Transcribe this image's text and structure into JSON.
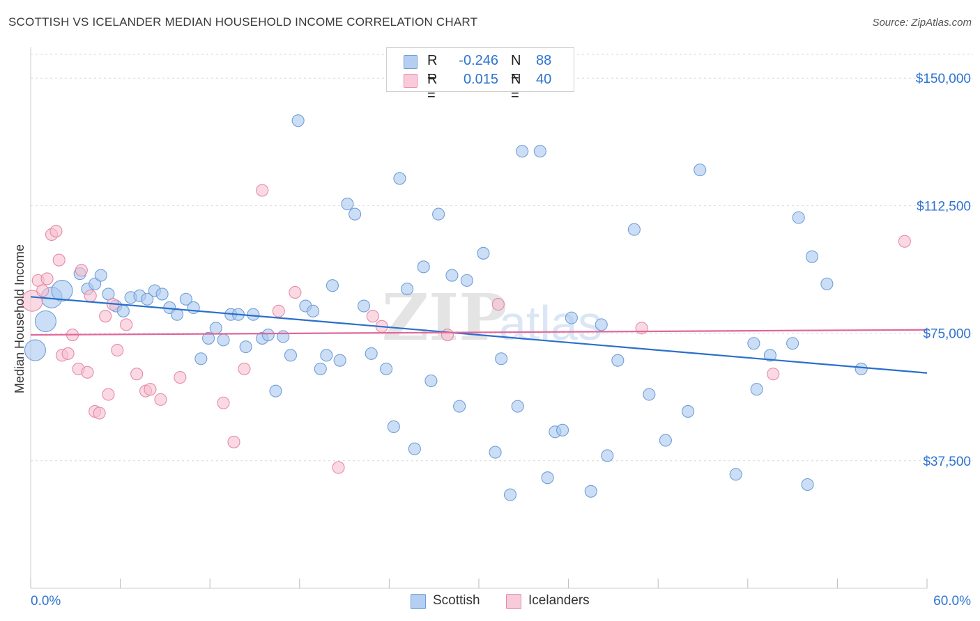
{
  "header": {
    "title": "SCOTTISH VS ICELANDER MEDIAN HOUSEHOLD INCOME CORRELATION CHART",
    "source": "Source: ZipAtlas.com"
  },
  "legend": {
    "rows": [
      {
        "r_label": "R =",
        "r_value": "-0.246",
        "n_label": "N =",
        "n_value": "88"
      },
      {
        "r_label": "R =",
        "r_value": "0.015",
        "n_label": "N =",
        "n_value": "40"
      }
    ]
  },
  "bottom_legend": {
    "scottish": "Scottish",
    "icelanders": "Icelanders"
  },
  "watermark": {
    "zip": "ZIP",
    "atlas": "atlas"
  },
  "colors": {
    "scottish_fill": "#a9c8ee",
    "scottish_stroke": "#6f9fd8",
    "scottish_line": "#2a6fcc",
    "icelanders_fill": "#f6bfd0",
    "icelanders_stroke": "#e58aa8",
    "icelanders_line": "#e0689a",
    "axis_text": "#2e74d0",
    "grid": "#d8d8d8"
  },
  "chart_data": {
    "type": "scatter",
    "title": "SCOTTISH VS ICELANDER MEDIAN HOUSEHOLD INCOME CORRELATION CHART",
    "xlabel": "",
    "ylabel": "Median Household Income",
    "xlim": [
      0,
      60
    ],
    "ylim": [
      0,
      157000
    ],
    "x_tick_labels": [
      "0.0%",
      "60.0%"
    ],
    "y_ticks": [
      37500,
      75000,
      112500,
      150000
    ],
    "y_tick_labels": [
      "$37,500",
      "$75,000",
      "$112,500",
      "$150,000"
    ],
    "grid": true,
    "legend_position": "top-center",
    "series": [
      {
        "name": "Scottish",
        "R": -0.246,
        "N": 88,
        "trend": {
          "x": [
            0,
            60
          ],
          "y": [
            85700,
            63300
          ]
        },
        "points": [
          {
            "x": 0.3,
            "y": 70000,
            "big": true
          },
          {
            "x": 1.0,
            "y": 78500,
            "big": true
          },
          {
            "x": 1.4,
            "y": 85500,
            "big": true
          },
          {
            "x": 2.1,
            "y": 87500,
            "big": true
          },
          {
            "x": 3.3,
            "y": 92500
          },
          {
            "x": 3.8,
            "y": 88000
          },
          {
            "x": 4.3,
            "y": 89500
          },
          {
            "x": 4.7,
            "y": 92000
          },
          {
            "x": 5.2,
            "y": 86500
          },
          {
            "x": 5.7,
            "y": 83000
          },
          {
            "x": 6.2,
            "y": 81500
          },
          {
            "x": 6.7,
            "y": 85500
          },
          {
            "x": 7.3,
            "y": 86000
          },
          {
            "x": 7.8,
            "y": 85000
          },
          {
            "x": 8.3,
            "y": 87500
          },
          {
            "x": 8.8,
            "y": 86500
          },
          {
            "x": 9.3,
            "y": 82500
          },
          {
            "x": 9.8,
            "y": 80500
          },
          {
            "x": 10.4,
            "y": 85000
          },
          {
            "x": 10.9,
            "y": 82500
          },
          {
            "x": 11.4,
            "y": 67500
          },
          {
            "x": 11.9,
            "y": 73500
          },
          {
            "x": 12.4,
            "y": 76500
          },
          {
            "x": 12.9,
            "y": 73000
          },
          {
            "x": 13.4,
            "y": 80500
          },
          {
            "x": 13.9,
            "y": 80500
          },
          {
            "x": 14.4,
            "y": 71000
          },
          {
            "x": 14.9,
            "y": 80500
          },
          {
            "x": 15.5,
            "y": 73500
          },
          {
            "x": 15.9,
            "y": 74500
          },
          {
            "x": 16.4,
            "y": 58000
          },
          {
            "x": 16.9,
            "y": 74000
          },
          {
            "x": 17.4,
            "y": 68500
          },
          {
            "x": 17.9,
            "y": 137500
          },
          {
            "x": 18.4,
            "y": 83000
          },
          {
            "x": 18.9,
            "y": 81500
          },
          {
            "x": 19.4,
            "y": 64500
          },
          {
            "x": 19.8,
            "y": 68500
          },
          {
            "x": 20.2,
            "y": 89000
          },
          {
            "x": 20.7,
            "y": 67000
          },
          {
            "x": 21.2,
            "y": 113000
          },
          {
            "x": 21.7,
            "y": 110000
          },
          {
            "x": 22.3,
            "y": 83000
          },
          {
            "x": 22.8,
            "y": 69000
          },
          {
            "x": 23.8,
            "y": 64500
          },
          {
            "x": 24.3,
            "y": 47500
          },
          {
            "x": 24.7,
            "y": 120500
          },
          {
            "x": 25.2,
            "y": 88000
          },
          {
            "x": 25.7,
            "y": 41000
          },
          {
            "x": 26.3,
            "y": 94500
          },
          {
            "x": 26.8,
            "y": 61000
          },
          {
            "x": 27.3,
            "y": 110000
          },
          {
            "x": 28.2,
            "y": 92000
          },
          {
            "x": 28.7,
            "y": 53500
          },
          {
            "x": 29.2,
            "y": 90500
          },
          {
            "x": 30.3,
            "y": 98500
          },
          {
            "x": 31.1,
            "y": 40000
          },
          {
            "x": 31.5,
            "y": 67500
          },
          {
            "x": 32.1,
            "y": 27500
          },
          {
            "x": 32.6,
            "y": 53500
          },
          {
            "x": 32.9,
            "y": 128500
          },
          {
            "x": 34.1,
            "y": 128500
          },
          {
            "x": 34.6,
            "y": 32500
          },
          {
            "x": 35.1,
            "y": 46000
          },
          {
            "x": 35.6,
            "y": 46500
          },
          {
            "x": 36.2,
            "y": 79500
          },
          {
            "x": 37.5,
            "y": 28500
          },
          {
            "x": 38.2,
            "y": 77500
          },
          {
            "x": 38.6,
            "y": 39000
          },
          {
            "x": 39.3,
            "y": 67000
          },
          {
            "x": 40.4,
            "y": 105500
          },
          {
            "x": 41.4,
            "y": 57000
          },
          {
            "x": 42.5,
            "y": 43500
          },
          {
            "x": 44.0,
            "y": 52000
          },
          {
            "x": 44.8,
            "y": 123000
          },
          {
            "x": 47.2,
            "y": 33500
          },
          {
            "x": 48.4,
            "y": 72000
          },
          {
            "x": 48.6,
            "y": 58500
          },
          {
            "x": 49.5,
            "y": 68500
          },
          {
            "x": 51.0,
            "y": 72000
          },
          {
            "x": 51.4,
            "y": 109000
          },
          {
            "x": 52.0,
            "y": 30500
          },
          {
            "x": 52.3,
            "y": 97500
          },
          {
            "x": 53.3,
            "y": 89500
          },
          {
            "x": 55.6,
            "y": 64500
          }
        ]
      },
      {
        "name": "Icelanders",
        "R": 0.015,
        "N": 40,
        "trend": {
          "x": [
            0,
            60
          ],
          "y": [
            74500,
            76000
          ]
        },
        "points": [
          {
            "x": 0.1,
            "y": 84500,
            "big": true
          },
          {
            "x": 0.5,
            "y": 90500
          },
          {
            "x": 0.8,
            "y": 87500
          },
          {
            "x": 1.1,
            "y": 91000
          },
          {
            "x": 1.4,
            "y": 104000
          },
          {
            "x": 1.7,
            "y": 105000
          },
          {
            "x": 1.9,
            "y": 96500
          },
          {
            "x": 2.1,
            "y": 68500
          },
          {
            "x": 2.5,
            "y": 69000
          },
          {
            "x": 2.8,
            "y": 74500
          },
          {
            "x": 3.2,
            "y": 64500
          },
          {
            "x": 3.4,
            "y": 93500
          },
          {
            "x": 3.8,
            "y": 63500
          },
          {
            "x": 4.0,
            "y": 86000
          },
          {
            "x": 4.3,
            "y": 52000
          },
          {
            "x": 4.6,
            "y": 51500
          },
          {
            "x": 5.0,
            "y": 80000
          },
          {
            "x": 5.2,
            "y": 57000
          },
          {
            "x": 5.5,
            "y": 83500
          },
          {
            "x": 5.8,
            "y": 70000
          },
          {
            "x": 6.4,
            "y": 77500
          },
          {
            "x": 7.1,
            "y": 63000
          },
          {
            "x": 7.7,
            "y": 58000
          },
          {
            "x": 8.0,
            "y": 58500
          },
          {
            "x": 8.7,
            "y": 55500
          },
          {
            "x": 10.0,
            "y": 62000
          },
          {
            "x": 12.9,
            "y": 54500
          },
          {
            "x": 13.6,
            "y": 43000
          },
          {
            "x": 14.3,
            "y": 64500
          },
          {
            "x": 15.5,
            "y": 117000
          },
          {
            "x": 16.6,
            "y": 81500
          },
          {
            "x": 17.7,
            "y": 87000
          },
          {
            "x": 20.6,
            "y": 35500
          },
          {
            "x": 22.9,
            "y": 80000
          },
          {
            "x": 23.5,
            "y": 77000
          },
          {
            "x": 27.9,
            "y": 74500
          },
          {
            "x": 31.3,
            "y": 83500
          },
          {
            "x": 40.9,
            "y": 76500
          },
          {
            "x": 49.7,
            "y": 63000
          },
          {
            "x": 58.5,
            "y": 102000
          }
        ]
      }
    ]
  }
}
